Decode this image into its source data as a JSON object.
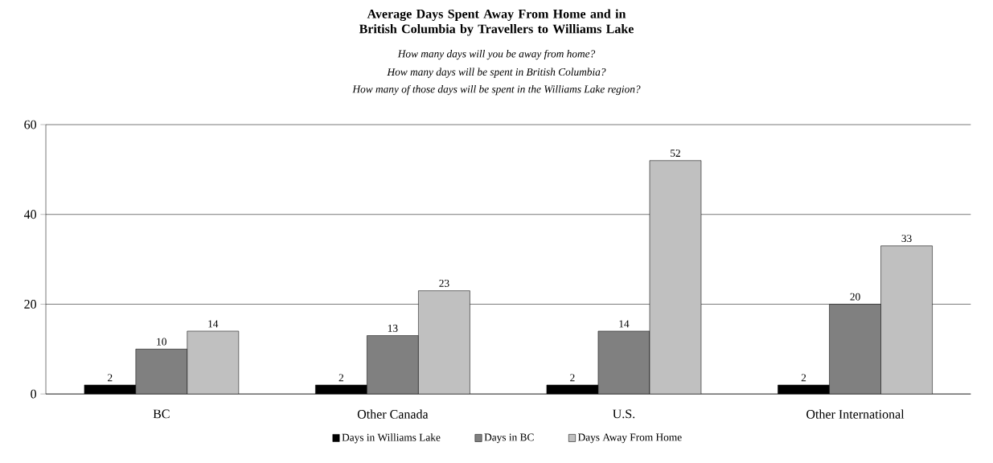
{
  "chart_data": {
    "type": "bar",
    "title": "Average Days Spent Away From Home and in British Columbia by Travellers to Williams Lake",
    "subtitle": "How many days will you be away from home?",
    "annotations": [
      "How many days will be spent in British Columbia?",
      "How many of those days will be spent in the Williams Lake region?"
    ],
    "categories": [
      "BC",
      "Other Canada",
      "U.S.",
      "Other International"
    ],
    "series": [
      {
        "name": "Days in Williams Lake",
        "color": "#000000",
        "values": [
          2,
          2,
          2,
          2
        ]
      },
      {
        "name": "Days in BC",
        "color": "#808080",
        "values": [
          10,
          13,
          14,
          20
        ]
      },
      {
        "name": "Days Away From Home",
        "color": "#c0c0c0",
        "values": [
          14,
          23,
          52,
          33
        ]
      }
    ],
    "ylim": [
      0,
      60
    ],
    "yticks": [
      0,
      20,
      40,
      60
    ],
    "grid": "y",
    "legend": "bottom",
    "data_labels": true
  }
}
